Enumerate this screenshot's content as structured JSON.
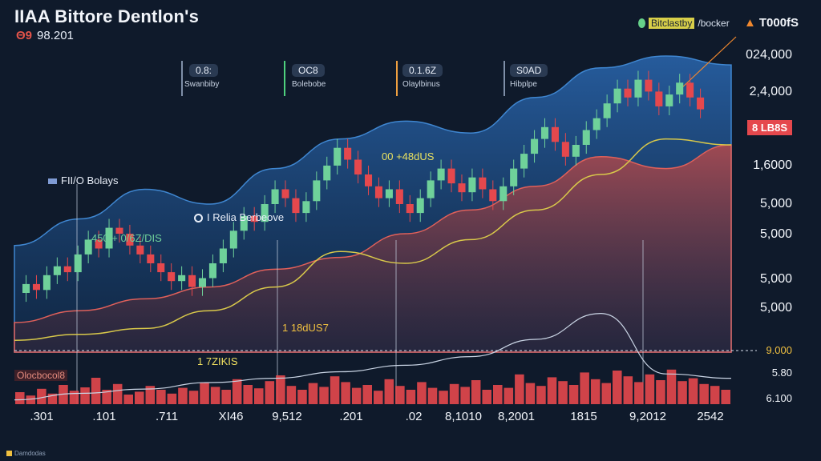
{
  "title": "IIAA Bittore Dentlon's",
  "subtitle_code": "Θ9",
  "subtitle_value": "98.201",
  "top_legend": {
    "label_highlight": "Bitclastby",
    "label_rest": "/bocker",
    "icon": "green-dot-icon"
  },
  "ticker": {
    "arrow_icon": "up-arrow-icon",
    "label": "T000fS"
  },
  "price_badge": "8 LB8S",
  "indicators": [
    {
      "value": "0.8:",
      "sub": "Swanbiby",
      "color": "#7f8fa8"
    },
    {
      "value": "OC8",
      "sub": "Bolebobe",
      "color": "#4fd17e"
    },
    {
      "value": "0.1.6Z",
      "sub": "Olaylbinus",
      "color": "#f0a040"
    },
    {
      "value": "S0AD",
      "sub": "Hibplpe",
      "color": "#7f8fa8"
    }
  ],
  "annotations": {
    "peak_label": "00 +48dUS",
    "fund_label": "FII/O Bolays",
    "relia_label": "I Relia Berbeove",
    "left_label": "450 + 0/6Z/DIS",
    "mid_label": "1 18dUS7",
    "low_label": "1 7ZIKIS",
    "watermark": "Olocbocol8"
  },
  "footer": "Damdodas",
  "colors": {
    "background": "#0f1a2b",
    "blue_band": "#1f4f8a",
    "red_band": "#c94a45",
    "up_candle": "#6fd19a",
    "down_candle": "#e5484d",
    "yellow_ma": "#d8c84a",
    "volume": "#e5484d"
  },
  "chart_data": {
    "type": "line",
    "y_tick_labels": [
      "024,000",
      "2,4,000",
      "1,6000",
      "5,000",
      "5,000",
      "5,000",
      "5,000",
      "9.000",
      "5.80",
      "6.100"
    ],
    "x_tick_labels": [
      ".301",
      ".101",
      ".711",
      "XI46",
      "9,512",
      ".201",
      ".02",
      "8,1010",
      "8,2001",
      "1815",
      "9,2012",
      "2542"
    ],
    "candles": [
      {
        "o": 0.2,
        "c": 0.23
      },
      {
        "o": 0.23,
        "c": 0.21
      },
      {
        "o": 0.21,
        "c": 0.26
      },
      {
        "o": 0.26,
        "c": 0.29
      },
      {
        "o": 0.29,
        "c": 0.27
      },
      {
        "o": 0.27,
        "c": 0.33
      },
      {
        "o": 0.33,
        "c": 0.38
      },
      {
        "o": 0.38,
        "c": 0.35
      },
      {
        "o": 0.35,
        "c": 0.42
      },
      {
        "o": 0.42,
        "c": 0.4
      },
      {
        "o": 0.4,
        "c": 0.36
      },
      {
        "o": 0.36,
        "c": 0.33
      },
      {
        "o": 0.33,
        "c": 0.3
      },
      {
        "o": 0.3,
        "c": 0.27
      },
      {
        "o": 0.27,
        "c": 0.24
      },
      {
        "o": 0.24,
        "c": 0.26
      },
      {
        "o": 0.26,
        "c": 0.22
      },
      {
        "o": 0.22,
        "c": 0.25
      },
      {
        "o": 0.25,
        "c": 0.3
      },
      {
        "o": 0.3,
        "c": 0.35
      },
      {
        "o": 0.35,
        "c": 0.41
      },
      {
        "o": 0.41,
        "c": 0.46
      },
      {
        "o": 0.46,
        "c": 0.44
      },
      {
        "o": 0.44,
        "c": 0.5
      },
      {
        "o": 0.5,
        "c": 0.55
      },
      {
        "o": 0.55,
        "c": 0.52
      },
      {
        "o": 0.52,
        "c": 0.47
      },
      {
        "o": 0.47,
        "c": 0.51
      },
      {
        "o": 0.51,
        "c": 0.58
      },
      {
        "o": 0.58,
        "c": 0.63
      },
      {
        "o": 0.63,
        "c": 0.69
      },
      {
        "o": 0.69,
        "c": 0.65
      },
      {
        "o": 0.65,
        "c": 0.6
      },
      {
        "o": 0.6,
        "c": 0.56
      },
      {
        "o": 0.56,
        "c": 0.52
      },
      {
        "o": 0.52,
        "c": 0.55
      },
      {
        "o": 0.55,
        "c": 0.5
      },
      {
        "o": 0.5,
        "c": 0.47
      },
      {
        "o": 0.47,
        "c": 0.52
      },
      {
        "o": 0.52,
        "c": 0.58
      },
      {
        "o": 0.58,
        "c": 0.62
      },
      {
        "o": 0.62,
        "c": 0.57
      },
      {
        "o": 0.57,
        "c": 0.54
      },
      {
        "o": 0.54,
        "c": 0.59
      },
      {
        "o": 0.59,
        "c": 0.55
      },
      {
        "o": 0.55,
        "c": 0.51
      },
      {
        "o": 0.51,
        "c": 0.56
      },
      {
        "o": 0.56,
        "c": 0.62
      },
      {
        "o": 0.62,
        "c": 0.67
      },
      {
        "o": 0.67,
        "c": 0.72
      },
      {
        "o": 0.72,
        "c": 0.76
      },
      {
        "o": 0.76,
        "c": 0.71
      },
      {
        "o": 0.71,
        "c": 0.66
      },
      {
        "o": 0.66,
        "c": 0.7
      },
      {
        "o": 0.7,
        "c": 0.75
      },
      {
        "o": 0.75,
        "c": 0.79
      },
      {
        "o": 0.79,
        "c": 0.84
      },
      {
        "o": 0.84,
        "c": 0.89
      },
      {
        "o": 0.89,
        "c": 0.86
      },
      {
        "o": 0.86,
        "c": 0.92
      },
      {
        "o": 0.92,
        "c": 0.88
      },
      {
        "o": 0.88,
        "c": 0.83
      },
      {
        "o": 0.83,
        "c": 0.87
      },
      {
        "o": 0.87,
        "c": 0.91
      },
      {
        "o": 0.91,
        "c": 0.86
      },
      {
        "o": 0.86,
        "c": 0.82
      }
    ],
    "volume": [
      0.25,
      0.18,
      0.32,
      0.22,
      0.4,
      0.28,
      0.35,
      0.55,
      0.3,
      0.42,
      0.2,
      0.26,
      0.38,
      0.3,
      0.22,
      0.34,
      0.28,
      0.45,
      0.36,
      0.3,
      0.52,
      0.4,
      0.33,
      0.48,
      0.6,
      0.38,
      0.3,
      0.44,
      0.36,
      0.58,
      0.46,
      0.34,
      0.4,
      0.28,
      0.52,
      0.38,
      0.3,
      0.46,
      0.34,
      0.28,
      0.42,
      0.36,
      0.5,
      0.3,
      0.4,
      0.34,
      0.62,
      0.44,
      0.38,
      0.56,
      0.48,
      0.4,
      0.66,
      0.52,
      0.44,
      0.7,
      0.58,
      0.46,
      0.62,
      0.5,
      0.72,
      0.48,
      0.54,
      0.42,
      0.38,
      0.3
    ],
    "blue_band_upper": [
      0.36,
      0.45,
      0.55,
      0.5,
      0.62,
      0.72,
      0.78,
      0.74,
      0.86,
      0.96,
      1.0,
      0.97
    ],
    "red_band_upper": [
      0.1,
      0.14,
      0.18,
      0.22,
      0.28,
      0.32,
      0.4,
      0.48,
      0.56,
      0.66,
      0.62,
      0.7
    ],
    "moving_average": [
      0.04,
      0.06,
      0.08,
      0.14,
      0.22,
      0.34,
      0.3,
      0.38,
      0.48,
      0.6,
      0.72,
      0.7
    ],
    "lower_line": [
      0.02,
      0.05,
      0.07,
      0.1,
      0.12,
      0.15,
      0.18,
      0.22,
      0.3,
      0.42,
      0.14,
      0.12
    ]
  }
}
